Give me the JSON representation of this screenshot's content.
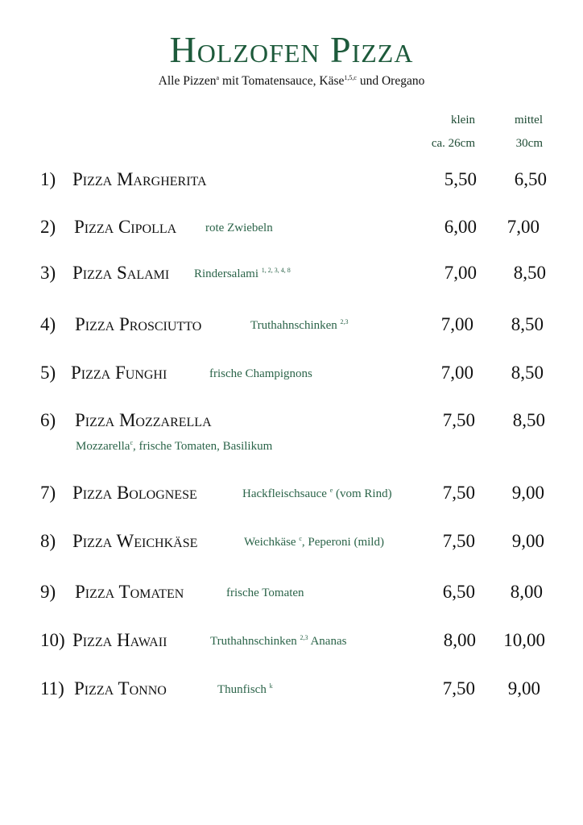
{
  "header": {
    "title": "Holzofen Pizza",
    "subtitle_parts": [
      "Alle Pizzen",
      "a",
      " mit Tomatensauce, Käse",
      "1,5,c",
      " und Oregano"
    ]
  },
  "columns": {
    "klein": {
      "label": "klein",
      "size": "ca. 26cm"
    },
    "mittel": {
      "label": "mittel",
      "size": "30cm"
    }
  },
  "colors": {
    "title": "#1d5a3b",
    "description": "#2b6449",
    "text": "#111111"
  },
  "menu": [
    {
      "number": "1)",
      "name": "Pizza Margherita",
      "description": "",
      "sup": "",
      "description_after": "",
      "klein": "5,50",
      "mittel": "6,50"
    },
    {
      "number": "2)",
      "name": "Pizza Cipolla",
      "description": "rote Zwiebeln",
      "sup": "",
      "description_after": "",
      "klein": "6,00",
      "mittel": "7,00"
    },
    {
      "number": "3)",
      "name": "Pizza Salami",
      "description": "Rindersalami ",
      "sup": "1, 2, 3, 4, 8",
      "description_after": "",
      "klein": "7,00",
      "mittel": "8,50"
    },
    {
      "number": "4)",
      "name": "Pizza Prosciutto",
      "description": "Truthahnschinken ",
      "sup": "2,3",
      "description_after": "",
      "klein": "7,00",
      "mittel": "8,50"
    },
    {
      "number": "5)",
      "name": "Pizza Funghi",
      "description": "frische Champignons",
      "sup": "",
      "description_after": "",
      "klein": "7,00",
      "mittel": "8,50"
    },
    {
      "number": "6)",
      "name": "Pizza Mozzarella",
      "description": "",
      "sup": "",
      "description_after": "",
      "klein": "7,50",
      "mittel": "8,50",
      "subdescription": {
        "before": "Mozzarella",
        "sup": "c",
        "after": ", frische Tomaten, Basilikum"
      }
    },
    {
      "number": "7)",
      "name": "Pizza Bolognese",
      "description": "Hackfleischsauce ",
      "sup": "e",
      "description_after": " (vom Rind)",
      "klein": "7,50",
      "mittel": "9,00"
    },
    {
      "number": "8)",
      "name": "Pizza Weichkäse",
      "description": "Weichkäse ",
      "sup": "c",
      "description_after": ", Peperoni (mild)",
      "klein": "7,50",
      "mittel": "9,00"
    },
    {
      "number": "9)",
      "name": "Pizza Tomaten",
      "description": "frische Tomaten",
      "sup": "",
      "description_after": "",
      "klein": "6,50",
      "mittel": "8,00"
    },
    {
      "number": "10)",
      "name": "Pizza Hawaii",
      "description": "Truthahnschinken ",
      "sup": "2,3",
      "description_after": " Ananas",
      "klein": "8,00",
      "mittel": "10,00"
    },
    {
      "number": "11)",
      "name": "Pizza Tonno",
      "description": "Thunfisch ",
      "sup": "k",
      "description_after": "",
      "klein": "7,50",
      "mittel": "9,00"
    }
  ]
}
